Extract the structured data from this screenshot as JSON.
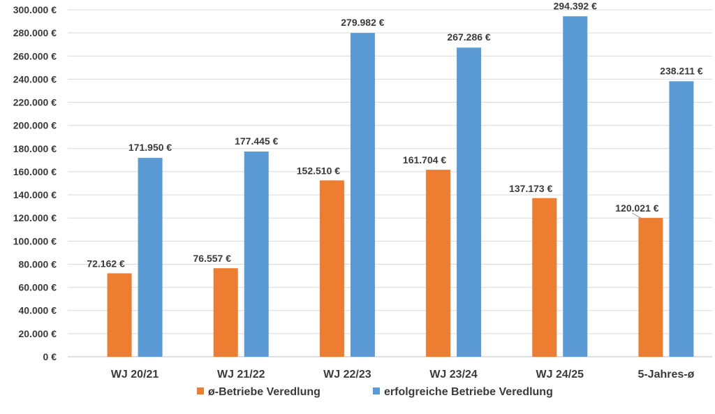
{
  "chart_data": {
    "type": "bar",
    "categories": [
      "WJ 20/21",
      "WJ 21/22",
      "WJ 22/23",
      "WJ 23/24",
      "WJ 24/25",
      "5-Jahres-ø"
    ],
    "series": [
      {
        "name": "ø-Betriebe Veredlung",
        "values": [
          72162,
          76557,
          152510,
          161704,
          137173,
          120021
        ],
        "labels": [
          "72.162 €",
          "76.557 €",
          "152.510 €",
          "161.704 €",
          "137.173 €",
          "120.021 €"
        ],
        "color": "#ED7D31"
      },
      {
        "name": "erfolgreiche Betriebe Veredlung",
        "values": [
          171950,
          177445,
          279982,
          267286,
          294392,
          238211
        ],
        "labels": [
          "171.950 €",
          "177.445 €",
          "279.982 €",
          "267.286 €",
          "294.392 €",
          "238.211 €"
        ],
        "color": "#5B9BD5"
      }
    ],
    "ylim": [
      0,
      300000
    ],
    "yticks": [
      0,
      20000,
      40000,
      60000,
      80000,
      100000,
      120000,
      140000,
      160000,
      180000,
      200000,
      220000,
      240000,
      260000,
      280000,
      300000
    ],
    "ytick_labels": [
      "0 €",
      "20.000 €",
      "40.000 €",
      "60.000 €",
      "80.000 €",
      "100.000 €",
      "120.000 €",
      "140.000 €",
      "160.000 €",
      "180.000 €",
      "200.000 €",
      "220.000 €",
      "240.000 €",
      "260.000 €",
      "280.000 €",
      "300.000 €"
    ],
    "grid": true,
    "legend_position": "bottom"
  }
}
